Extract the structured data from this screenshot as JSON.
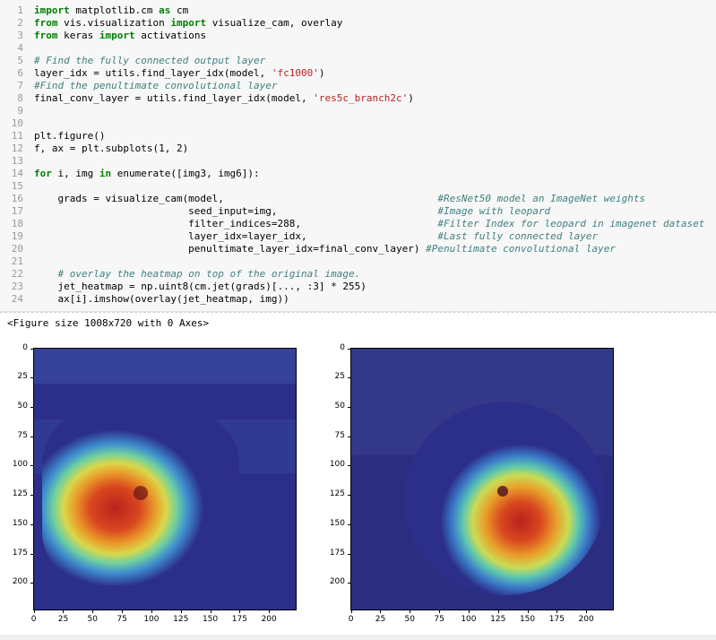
{
  "code_lines": [
    {
      "n": "1",
      "parts": [
        [
          "kw",
          "import"
        ],
        [
          "src",
          " matplotlib.cm "
        ],
        [
          "kw",
          "as"
        ],
        [
          "src",
          " cm"
        ]
      ]
    },
    {
      "n": "2",
      "parts": [
        [
          "kw",
          "from"
        ],
        [
          "src",
          " vis.visualization "
        ],
        [
          "kw",
          "import"
        ],
        [
          "src",
          " visualize_cam, overlay"
        ]
      ]
    },
    {
      "n": "3",
      "parts": [
        [
          "kw",
          "from"
        ],
        [
          "src",
          " keras "
        ],
        [
          "kw",
          "import"
        ],
        [
          "src",
          " activations"
        ]
      ]
    },
    {
      "n": "4",
      "parts": []
    },
    {
      "n": "5",
      "parts": [
        [
          "cm",
          "# Find the fully connected output layer"
        ]
      ]
    },
    {
      "n": "6",
      "parts": [
        [
          "src",
          "layer_idx = utils.find_layer_idx(model, "
        ],
        [
          "str",
          "'fc1000'"
        ],
        [
          "src",
          ")"
        ]
      ]
    },
    {
      "n": "7",
      "parts": [
        [
          "cm",
          "#Find the penultimate convolutional layer"
        ]
      ]
    },
    {
      "n": "8",
      "parts": [
        [
          "src",
          "final_conv_layer = utils.find_layer_idx(model, "
        ],
        [
          "str",
          "'res5c_branch2c'"
        ],
        [
          "src",
          ")"
        ]
      ]
    },
    {
      "n": "9",
      "parts": []
    },
    {
      "n": "10",
      "parts": []
    },
    {
      "n": "11",
      "parts": [
        [
          "src",
          "plt.figure()"
        ]
      ]
    },
    {
      "n": "12",
      "parts": [
        [
          "src",
          "f, ax = plt.subplots(1, 2)"
        ]
      ]
    },
    {
      "n": "13",
      "parts": []
    },
    {
      "n": "14",
      "parts": [
        [
          "kw",
          "for"
        ],
        [
          "src",
          " i, img "
        ],
        [
          "kw",
          "in"
        ],
        [
          "src",
          " enumerate([img3, img6]):"
        ]
      ]
    },
    {
      "n": "15",
      "parts": []
    },
    {
      "n": "16",
      "parts": [
        [
          "src",
          "    grads = visualize_cam(model,                                    "
        ],
        [
          "cm",
          "#ResNet50 model an ImageNet weights"
        ]
      ]
    },
    {
      "n": "17",
      "parts": [
        [
          "src",
          "                          seed_input=img,                           "
        ],
        [
          "cm",
          "#Image with leopard"
        ]
      ]
    },
    {
      "n": "18",
      "parts": [
        [
          "src",
          "                          filter_indices=288,                       "
        ],
        [
          "cm",
          "#Filter Index for leopard in imagenet dataset"
        ]
      ]
    },
    {
      "n": "19",
      "parts": [
        [
          "src",
          "                          layer_idx=layer_idx,                      "
        ],
        [
          "cm",
          "#Last fully connected layer"
        ]
      ]
    },
    {
      "n": "20",
      "parts": [
        [
          "src",
          "                          penultimate_layer_idx=final_conv_layer) "
        ],
        [
          "cm",
          "#Penultimate convolutional layer"
        ]
      ]
    },
    {
      "n": "21",
      "parts": []
    },
    {
      "n": "22",
      "parts": [
        [
          "src",
          "    "
        ],
        [
          "cm",
          "# overlay the heatmap on top of the original image."
        ]
      ]
    },
    {
      "n": "23",
      "parts": [
        [
          "src",
          "    jet_heatmap = np.uint8(cm.jet(grads)[..., :3] * 255)"
        ]
      ]
    },
    {
      "n": "24",
      "parts": [
        [
          "src",
          "    ax[i].imshow(overlay(jet_heatmap, img))"
        ]
      ]
    }
  ],
  "output_text": "<Figure size 1008x720 with 0 Axes>",
  "axes": [
    {
      "name": "left-heatmap-axes",
      "xticks": [
        "0",
        "25",
        "50",
        "75",
        "100",
        "125",
        "150",
        "175",
        "200"
      ],
      "yticks": [
        "0",
        "25",
        "50",
        "75",
        "100",
        "125",
        "150",
        "175",
        "200"
      ]
    },
    {
      "name": "right-heatmap-axes",
      "xticks": [
        "0",
        "25",
        "50",
        "75",
        "100",
        "125",
        "150",
        "175",
        "200"
      ],
      "yticks": [
        "0",
        "25",
        "50",
        "75",
        "100",
        "125",
        "150",
        "175",
        "200"
      ]
    }
  ],
  "colors": {
    "jet_low": "#2c2f8a",
    "jet_high": "#c8261f"
  }
}
